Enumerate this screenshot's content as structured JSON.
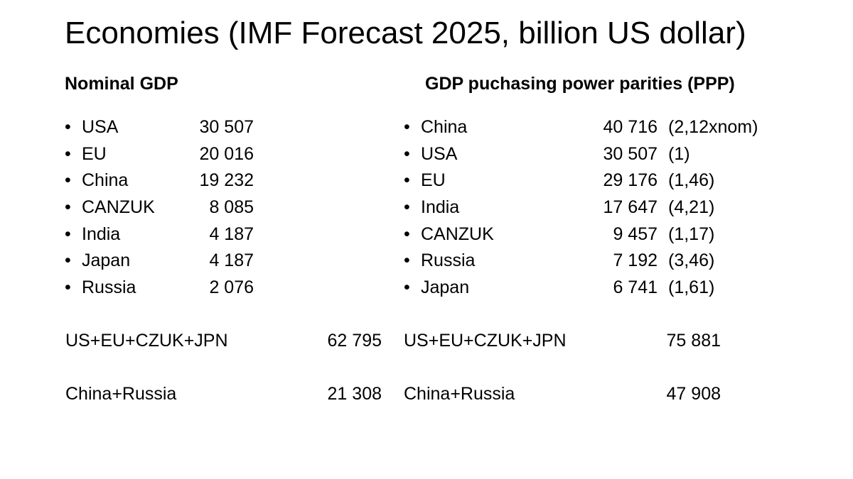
{
  "title": "Economies (IMF Forecast 2025, billion US dollar)",
  "nominal": {
    "heading": "Nominal GDP",
    "items": [
      {
        "country": "USA",
        "value": "30 507"
      },
      {
        "country": "EU",
        "value": "20 016"
      },
      {
        "country": "China",
        "value": "19 232"
      },
      {
        "country": "CANZUK",
        "value": "8 085"
      },
      {
        "country": "India",
        "value": "4 187"
      },
      {
        "country": "Japan",
        "value": "4 187"
      },
      {
        "country": "Russia",
        "value": "2 076"
      }
    ],
    "sums": [
      {
        "label": "US+EU+CZUK+JPN",
        "value": "62 795"
      },
      {
        "label": "China+Russia",
        "value": "21 308"
      }
    ]
  },
  "ppp": {
    "heading": "GDP puchasing power parities (PPP)",
    "items": [
      {
        "country": "China",
        "value": "40 716",
        "ratio": "(2,12xnom)"
      },
      {
        "country": "USA",
        "value": "30 507",
        "ratio": "(1)"
      },
      {
        "country": "EU",
        "value": "29 176",
        "ratio": "(1,46)"
      },
      {
        "country": "India",
        "value": "17 647",
        "ratio": "(4,21)"
      },
      {
        "country": "CANZUK",
        "value": "9 457",
        "ratio": "(1,17)"
      },
      {
        "country": "Russia",
        "value": "7 192",
        "ratio": "(3,46)"
      },
      {
        "country": "Japan",
        "value": "6 741",
        "ratio": "(1,61)"
      }
    ],
    "sums": [
      {
        "label": "US+EU+CZUK+JPN",
        "value": "75 881"
      },
      {
        "label": "China+Russia",
        "value": "47 908"
      }
    ]
  },
  "bullet_char": "•"
}
